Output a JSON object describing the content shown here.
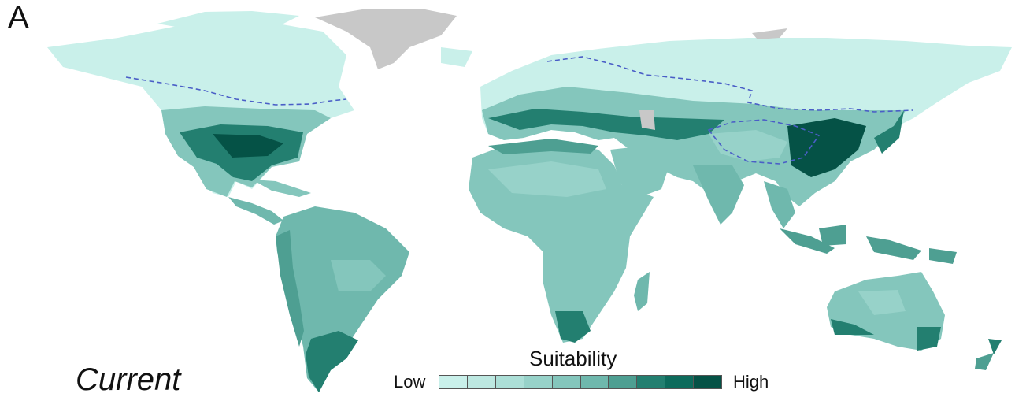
{
  "panel_label": "A",
  "scenario": "Current",
  "legend": {
    "title": "Suitability",
    "low_label": "Low",
    "high_label": "High",
    "classes": [
      "#c9f0ea",
      "#bde8e1",
      "#acdfd7",
      "#97d2c9",
      "#84c6bc",
      "#6fb8ad",
      "#4e9f92",
      "#237f70",
      "#0d6b5c",
      "#055246"
    ]
  },
  "colors": {
    "no_data": "#c8c8c8",
    "boundary_line": "#4a5ec7",
    "background": "#ffffff"
  }
}
